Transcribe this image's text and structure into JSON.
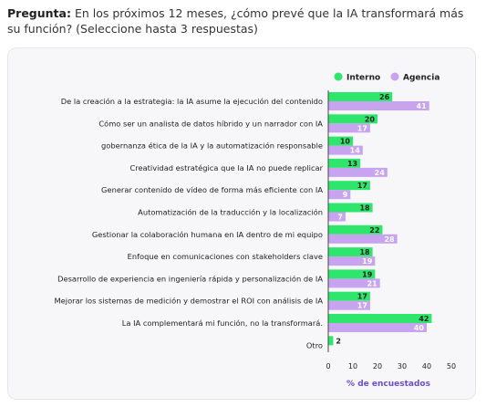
{
  "question": {
    "prefix": "Pregunta:",
    "text": "En los próximos 12 meses, ¿cómo prevé que la IA transformará más su función? (Seleccione hasta 3 respuestas)"
  },
  "colors": {
    "interno": "#2ee66b",
    "agencia": "#c7a3f0"
  },
  "chart_data": {
    "type": "bar",
    "orientation": "horizontal",
    "categories": [
      "De la creación a la estrategia: la IA asume la ejecución del contenido",
      "Cómo ser un analista de datos híbrido y un narrador con IA",
      "gobernanza ética de la IA y la automatización responsable",
      "Creatividad estratégica que la IA no puede replicar",
      "Generar contenido de vídeo de forma más eficiente con IA",
      "Automatización de la traducción y la localización",
      "Gestionar la colaboración humana en IA dentro de mi equipo",
      "Enfoque en comunicaciones con stakeholders clave",
      "Desarrollo de experiencia en ingeniería rápida y personalización de IA",
      "Mejorar los sistemas de medición y demostrar el ROI con análisis de IA",
      "La IA complementará mi función, no la transformará.",
      "Otro"
    ],
    "series": [
      {
        "name": "Interno",
        "values": [
          26,
          20,
          10,
          13,
          17,
          18,
          22,
          18,
          19,
          17,
          42,
          2
        ]
      },
      {
        "name": "Agencia",
        "values": [
          41,
          17,
          14,
          24,
          9,
          7,
          28,
          19,
          21,
          17,
          40,
          null
        ]
      }
    ],
    "xlabel": "% de encuestados",
    "xlim": [
      0,
      50
    ],
    "xticks": [
      0,
      10,
      20,
      30,
      40,
      50
    ],
    "legend_position": "top-right",
    "grid": false
  }
}
